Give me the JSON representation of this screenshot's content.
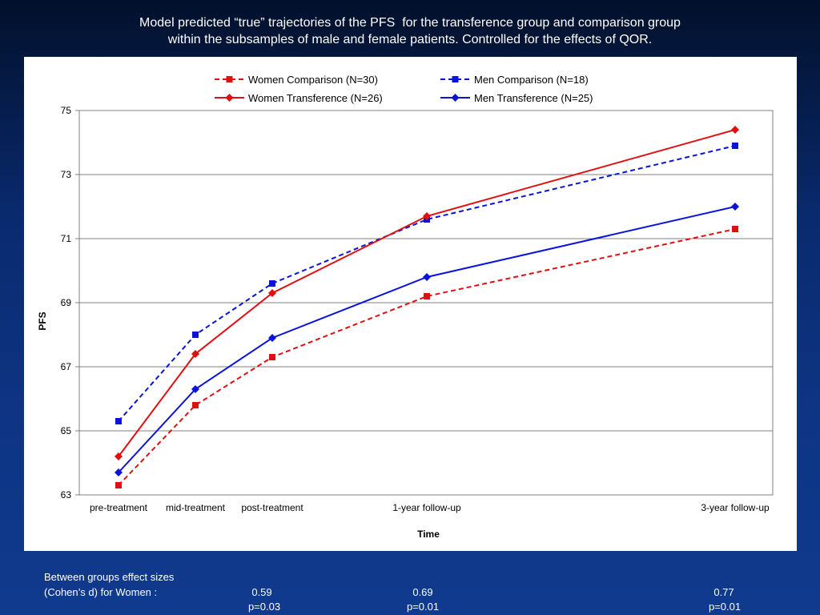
{
  "slide": {
    "title_line1": "Model predicted “true” trajectories of the PFS  for the transference group and comparison group",
    "title_line2": "within the subsamples of male and female patients. Controlled for the effects of QOR."
  },
  "colors": {
    "women": "#e01010",
    "men": "#0a14d8",
    "background": "#0a2a6e",
    "panel": "#ffffff"
  },
  "chart_data": {
    "type": "line",
    "xlabel": "Time",
    "ylabel": "PFS",
    "ylim": [
      63,
      75
    ],
    "yticks": [
      63,
      65,
      67,
      69,
      71,
      73,
      75
    ],
    "grid": true,
    "legend_placement": "top",
    "categories": [
      "pre-treatment",
      "mid-treatment",
      "post-treatment",
      "1-year follow-up",
      "3-year follow-up"
    ],
    "x": [
      0,
      1,
      2,
      4,
      8
    ],
    "series": [
      {
        "name": "Women Comparison (N=30)",
        "color": "#e01010",
        "dashed": true,
        "marker": "square",
        "values": [
          63.3,
          65.8,
          67.3,
          69.2,
          71.3
        ]
      },
      {
        "name": "Men Comparison (N=18)",
        "color": "#0a14d8",
        "dashed": true,
        "marker": "square",
        "values": [
          65.3,
          68.0,
          69.6,
          71.6,
          73.9
        ]
      },
      {
        "name": "Women Transference (N=26)",
        "color": "#e01010",
        "dashed": false,
        "marker": "diamond",
        "values": [
          64.2,
          67.4,
          69.3,
          71.7,
          74.4
        ]
      },
      {
        "name": "Men Transference (N=25)",
        "color": "#0a14d8",
        "dashed": false,
        "marker": "diamond",
        "values": [
          63.7,
          66.3,
          67.9,
          69.8,
          72.0
        ]
      }
    ]
  },
  "effect_sizes": {
    "label_line1": "Between groups effect sizes",
    "label_line2": "(Cohen’s d) for Women :",
    "items": [
      {
        "d": "0.59",
        "p": "p=0.03"
      },
      {
        "d": "0.69",
        "p": "p=0.01"
      },
      {
        "d": "0.77",
        "p": "p=0.01"
      }
    ]
  }
}
